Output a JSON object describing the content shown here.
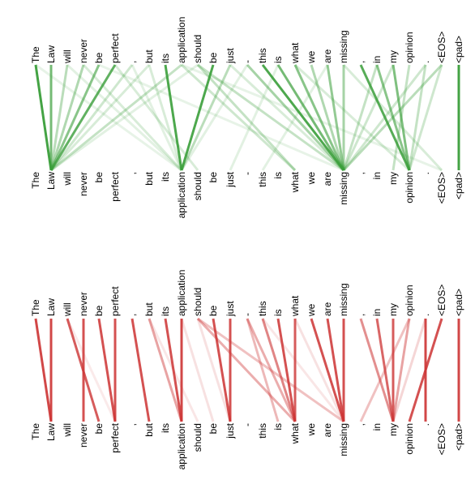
{
  "tokens": [
    "The",
    "Law",
    "will",
    "never",
    "be",
    "perfect",
    ",",
    "but",
    "its",
    "application",
    "should",
    "be",
    "just",
    "-",
    "this",
    "is",
    "what",
    "we",
    "are",
    "missing",
    ",",
    "in",
    "my",
    "opinion",
    ".",
    "<EOS>",
    "<pad>"
  ],
  "panels": [
    {
      "name": "green",
      "color": "#3a9e3a",
      "edges": [
        {
          "from": 0,
          "to": 1,
          "w": 0.95
        },
        {
          "from": 1,
          "to": 1,
          "w": 0.7
        },
        {
          "from": 2,
          "to": 1,
          "w": 0.35
        },
        {
          "from": 3,
          "to": 1,
          "w": 0.4
        },
        {
          "from": 4,
          "to": 1,
          "w": 0.6
        },
        {
          "from": 5,
          "to": 1,
          "w": 0.8
        },
        {
          "from": 6,
          "to": 1,
          "w": 0.25
        },
        {
          "from": 7,
          "to": 1,
          "w": 0.2
        },
        {
          "from": 8,
          "to": 9,
          "w": 0.9
        },
        {
          "from": 9,
          "to": 1,
          "w": 0.3
        },
        {
          "from": 11,
          "to": 9,
          "w": 0.9
        },
        {
          "from": 12,
          "to": 9,
          "w": 0.35
        },
        {
          "from": 10,
          "to": 16,
          "w": 0.3
        },
        {
          "from": 13,
          "to": 19,
          "w": 0.45
        },
        {
          "from": 14,
          "to": 19,
          "w": 0.9
        },
        {
          "from": 15,
          "to": 19,
          "w": 0.7
        },
        {
          "from": 16,
          "to": 19,
          "w": 0.6
        },
        {
          "from": 17,
          "to": 19,
          "w": 0.4
        },
        {
          "from": 18,
          "to": 19,
          "w": 0.55
        },
        {
          "from": 19,
          "to": 19,
          "w": 0.45
        },
        {
          "from": 20,
          "to": 23,
          "w": 0.85
        },
        {
          "from": 21,
          "to": 23,
          "w": 0.6
        },
        {
          "from": 22,
          "to": 23,
          "w": 0.65
        },
        {
          "from": 23,
          "to": 22,
          "w": 0.3
        },
        {
          "from": 25,
          "to": 19,
          "w": 0.35
        },
        {
          "from": 24,
          "to": 19,
          "w": 0.25
        },
        {
          "from": 26,
          "to": 26,
          "w": 0.95
        },
        {
          "from": 9,
          "to": 16,
          "w": 0.25
        },
        {
          "from": 10,
          "to": 19,
          "w": 0.3
        },
        {
          "from": 5,
          "to": 10,
          "w": 0.2
        },
        {
          "from": 3,
          "to": 9,
          "w": 0.2
        },
        {
          "from": 12,
          "to": 19,
          "w": 0.2
        },
        {
          "from": 24,
          "to": 23,
          "w": 0.3
        },
        {
          "from": 25,
          "to": 23,
          "w": 0.25
        },
        {
          "from": 2,
          "to": 9,
          "w": 0.15
        },
        {
          "from": 7,
          "to": 9,
          "w": 0.2
        },
        {
          "from": 10,
          "to": 1,
          "w": 0.15
        },
        {
          "from": 15,
          "to": 12,
          "w": 0.15
        },
        {
          "from": 18,
          "to": 14,
          "w": 0.15
        },
        {
          "from": 16,
          "to": 23,
          "w": 0.2
        },
        {
          "from": 19,
          "to": 25,
          "w": 0.2
        },
        {
          "from": 21,
          "to": 19,
          "w": 0.3
        },
        {
          "from": 22,
          "to": 19,
          "w": 0.25
        },
        {
          "from": 6,
          "to": 9,
          "w": 0.15
        },
        {
          "from": 0,
          "to": 9,
          "w": 0.12
        },
        {
          "from": 4,
          "to": 19,
          "w": 0.12
        },
        {
          "from": 9,
          "to": 25,
          "w": 0.12
        },
        {
          "from": 13,
          "to": 9,
          "w": 0.15
        }
      ]
    },
    {
      "name": "red",
      "color": "#cc3333",
      "edges": [
        {
          "from": 0,
          "to": 1,
          "w": 0.9
        },
        {
          "from": 1,
          "to": 1,
          "w": 0.9
        },
        {
          "from": 2,
          "to": 4,
          "w": 0.8
        },
        {
          "from": 3,
          "to": 3,
          "w": 0.85
        },
        {
          "from": 4,
          "to": 5,
          "w": 0.85
        },
        {
          "from": 5,
          "to": 5,
          "w": 0.85
        },
        {
          "from": 6,
          "to": 7,
          "w": 0.85
        },
        {
          "from": 7,
          "to": 9,
          "w": 0.45
        },
        {
          "from": 8,
          "to": 9,
          "w": 0.85
        },
        {
          "from": 9,
          "to": 9,
          "w": 0.9
        },
        {
          "from": 10,
          "to": 16,
          "w": 0.4
        },
        {
          "from": 10,
          "to": 19,
          "w": 0.3
        },
        {
          "from": 11,
          "to": 12,
          "w": 0.85
        },
        {
          "from": 12,
          "to": 12,
          "w": 0.85
        },
        {
          "from": 13,
          "to": 16,
          "w": 0.4
        },
        {
          "from": 13,
          "to": 15,
          "w": 0.35
        },
        {
          "from": 14,
          "to": 16,
          "w": 0.6
        },
        {
          "from": 15,
          "to": 16,
          "w": 0.85
        },
        {
          "from": 16,
          "to": 16,
          "w": 0.8
        },
        {
          "from": 17,
          "to": 19,
          "w": 0.85
        },
        {
          "from": 18,
          "to": 19,
          "w": 0.85
        },
        {
          "from": 19,
          "to": 19,
          "w": 0.85
        },
        {
          "from": 20,
          "to": 22,
          "w": 0.55
        },
        {
          "from": 21,
          "to": 22,
          "w": 0.75
        },
        {
          "from": 22,
          "to": 22,
          "w": 0.8
        },
        {
          "from": 23,
          "to": 22,
          "w": 0.45
        },
        {
          "from": 23,
          "to": 20,
          "w": 0.3
        },
        {
          "from": 24,
          "to": 24,
          "w": 0.9
        },
        {
          "from": 25,
          "to": 23,
          "w": 0.85
        },
        {
          "from": 26,
          "to": 26,
          "w": 0.9
        },
        {
          "from": 10,
          "to": 12,
          "w": 0.15
        },
        {
          "from": 9,
          "to": 11,
          "w": 0.15
        },
        {
          "from": 7,
          "to": 10,
          "w": 0.12
        },
        {
          "from": 24,
          "to": 22,
          "w": 0.2
        },
        {
          "from": 16,
          "to": 19,
          "w": 0.15
        },
        {
          "from": 2,
          "to": 5,
          "w": 0.1
        },
        {
          "from": 14,
          "to": 19,
          "w": 0.12
        }
      ]
    }
  ]
}
